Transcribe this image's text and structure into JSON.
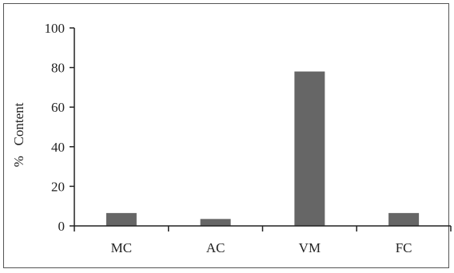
{
  "chart_data": {
    "type": "bar",
    "categories": [
      "MC",
      "AC",
      "VM",
      "FC"
    ],
    "series": [
      {
        "values": [
          6.5,
          3.5,
          78,
          6.5
        ]
      }
    ],
    "title": "",
    "xlabel": "",
    "ylabel": "%   Content",
    "ylim": [
      0,
      100
    ],
    "yticks": [
      0,
      20,
      40,
      60,
      80,
      100
    ],
    "grid": false,
    "legend": "none",
    "bar_color": "#666666",
    "axis_color": "#222222"
  }
}
